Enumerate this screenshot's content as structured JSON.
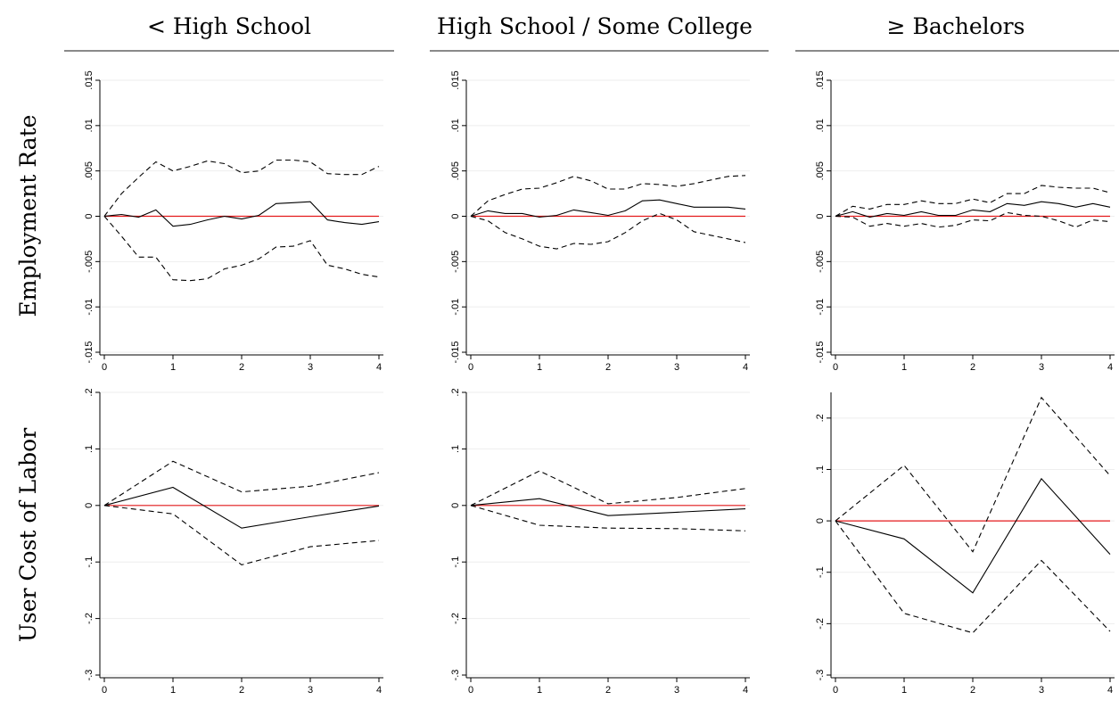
{
  "columns": [
    "< High School",
    "High School / Some College",
    "≥ Bachelors"
  ],
  "rows": [
    "Employment Rate",
    "User Cost of Labor"
  ],
  "chart_data": [
    {
      "type": "line",
      "x": [
        0,
        0.25,
        0.5,
        0.75,
        1,
        1.25,
        1.5,
        1.75,
        2,
        2.25,
        2.5,
        2.75,
        3,
        3.25,
        3.5,
        3.75,
        4
      ],
      "xlim": [
        0,
        4
      ],
      "xticks": [
        0,
        1,
        2,
        3,
        4
      ],
      "ylim": [
        -0.015,
        0.015
      ],
      "yticks": [
        {
          "value": 0.015,
          "label": ".015"
        },
        {
          "value": 0.01,
          "label": ".01"
        },
        {
          "value": 0.005,
          "label": ".005"
        },
        0,
        {
          "value": -0.005,
          "label": "-.005"
        },
        {
          "value": -0.01,
          "label": "-.01"
        },
        {
          "value": -0.015,
          "label": "-.015"
        }
      ],
      "grid": true,
      "reference_line": 0,
      "reference_color": "#e41a1c",
      "series": [
        {
          "color": "#000000",
          "style": "solid",
          "values": [
            0,
            0.0002,
            -0.0001,
            0.0007,
            -0.0011,
            -0.0009,
            -0.0004,
            0,
            -0.0003,
            0.0001,
            0.0014,
            0.0015,
            0.0016,
            -0.0004,
            -0.0007,
            -0.0009,
            -0.0006
          ]
        },
        {
          "color": "#000000",
          "style": "dashed",
          "values": [
            0,
            0.0025,
            0.0043,
            0.006,
            0.005,
            0.0055,
            0.0061,
            0.0058,
            0.0048,
            0.005,
            0.0062,
            0.0062,
            0.006,
            0.0047,
            0.0046,
            0.0046,
            0.0055
          ]
        },
        {
          "color": "#000000",
          "style": "dashed",
          "values": [
            0,
            -0.0022,
            -0.0045,
            -0.0045,
            -0.007,
            -0.0071,
            -0.0069,
            -0.0058,
            -0.0054,
            -0.0047,
            -0.0034,
            -0.0033,
            -0.0027,
            -0.0054,
            -0.0058,
            -0.0064,
            -0.0067
          ]
        }
      ]
    },
    {
      "type": "line",
      "x": [
        0,
        0.25,
        0.5,
        0.75,
        1,
        1.25,
        1.5,
        1.75,
        2,
        2.25,
        2.5,
        2.75,
        3,
        3.25,
        3.5,
        3.75,
        4
      ],
      "xlim": [
        0,
        4
      ],
      "xticks": [
        0,
        1,
        2,
        3,
        4
      ],
      "ylim": [
        -0.015,
        0.015
      ],
      "yticks": [
        {
          "value": 0.015,
          "label": ".015"
        },
        {
          "value": 0.01,
          "label": ".01"
        },
        {
          "value": 0.005,
          "label": ".005"
        },
        0,
        {
          "value": -0.005,
          "label": "-.005"
        },
        {
          "value": -0.01,
          "label": "-.01"
        },
        {
          "value": -0.015,
          "label": "-.015"
        }
      ],
      "grid": true,
      "reference_line": 0,
      "reference_color": "#e41a1c",
      "series": [
        {
          "color": "#000000",
          "style": "solid",
          "values": [
            0,
            0.0006,
            0.0003,
            0.0003,
            -0.0001,
            0.0001,
            0.0007,
            0.0004,
            0.0001,
            0.0006,
            0.0017,
            0.0018,
            0.0014,
            0.001,
            0.001,
            0.001,
            0.0008
          ]
        },
        {
          "color": "#000000",
          "style": "dashed",
          "values": [
            0,
            0.0017,
            0.0024,
            0.003,
            0.0031,
            0.0037,
            0.0044,
            0.0039,
            0.003,
            0.003,
            0.0036,
            0.0035,
            0.0033,
            0.0036,
            0.004,
            0.0044,
            0.0045
          ]
        },
        {
          "color": "#000000",
          "style": "dashed",
          "values": [
            0,
            -0.0005,
            -0.0018,
            -0.0025,
            -0.0033,
            -0.0036,
            -0.003,
            -0.0031,
            -0.0028,
            -0.0018,
            -0.0005,
            0.0003,
            -0.0004,
            -0.0017,
            -0.0021,
            -0.0025,
            -0.0029
          ]
        }
      ]
    },
    {
      "type": "line",
      "x": [
        0,
        0.25,
        0.5,
        0.75,
        1,
        1.25,
        1.5,
        1.75,
        2,
        2.25,
        2.5,
        2.75,
        3,
        3.25,
        3.5,
        3.75,
        4
      ],
      "xlim": [
        0,
        4
      ],
      "xticks": [
        0,
        1,
        2,
        3,
        4
      ],
      "ylim": [
        -0.015,
        0.015
      ],
      "yticks": [
        {
          "value": 0.015,
          "label": ".015"
        },
        {
          "value": 0.01,
          "label": ".01"
        },
        {
          "value": 0.005,
          "label": ".005"
        },
        0,
        {
          "value": -0.005,
          "label": "-.005"
        },
        {
          "value": -0.01,
          "label": "-.01"
        },
        {
          "value": -0.015,
          "label": "-.015"
        }
      ],
      "grid": true,
      "reference_line": 0,
      "reference_color": "#e41a1c",
      "series": [
        {
          "color": "#000000",
          "style": "solid",
          "values": [
            0,
            0.0005,
            -0.0001,
            0.0003,
            0.0001,
            0.0005,
            0.0001,
            0.0001,
            0.0007,
            0.0005,
            0.0014,
            0.0012,
            0.0016,
            0.0014,
            0.001,
            0.0014,
            0.001
          ]
        },
        {
          "color": "#000000",
          "style": "dashed",
          "values": [
            0,
            0.0011,
            0.0008,
            0.0013,
            0.0013,
            0.0017,
            0.0014,
            0.0014,
            0.0019,
            0.0015,
            0.0025,
            0.0025,
            0.0034,
            0.0032,
            0.0031,
            0.0031,
            0.0026
          ]
        },
        {
          "color": "#000000",
          "style": "dashed",
          "values": [
            0,
            -0.0001,
            -0.0011,
            -0.0008,
            -0.0011,
            -0.0008,
            -0.0012,
            -0.001,
            -0.0004,
            -0.0005,
            0.0004,
            0.0001,
            0,
            -0.0005,
            -0.0012,
            -0.0004,
            -0.0006
          ]
        }
      ]
    },
    {
      "type": "line",
      "x": [
        0,
        1,
        2,
        3,
        4
      ],
      "xlim": [
        0,
        4
      ],
      "xticks": [
        0,
        1,
        2,
        3,
        4
      ],
      "ylim": [
        -0.3,
        0.2
      ],
      "yticks": [
        {
          "value": 0.2,
          "label": ".2"
        },
        {
          "value": 0.1,
          "label": ".1"
        },
        0,
        {
          "value": -0.1,
          "label": "-.1"
        },
        {
          "value": -0.2,
          "label": "-.2"
        },
        {
          "value": -0.3,
          "label": "-.3"
        }
      ],
      "grid": true,
      "reference_line": 0,
      "reference_color": "#e41a1c",
      "series": [
        {
          "color": "#000000",
          "style": "solid",
          "values": [
            0,
            0.032,
            -0.04,
            -0.02,
            -0.001
          ]
        },
        {
          "color": "#000000",
          "style": "dashed",
          "values": [
            0,
            0.078,
            0.024,
            0.034,
            0.058
          ]
        },
        {
          "color": "#000000",
          "style": "dashed",
          "values": [
            0,
            -0.015,
            -0.105,
            -0.073,
            -0.062
          ]
        }
      ]
    },
    {
      "type": "line",
      "x": [
        0,
        1,
        2,
        3,
        4
      ],
      "xlim": [
        0,
        4
      ],
      "xticks": [
        0,
        1,
        2,
        3,
        4
      ],
      "ylim": [
        -0.3,
        0.2
      ],
      "yticks": [
        {
          "value": 0.2,
          "label": ".2"
        },
        {
          "value": 0.1,
          "label": ".1"
        },
        0,
        {
          "value": -0.1,
          "label": "-.1"
        },
        {
          "value": -0.2,
          "label": "-.2"
        },
        {
          "value": -0.3,
          "label": "-.3"
        }
      ],
      "grid": true,
      "reference_line": 0,
      "reference_color": "#e41a1c",
      "series": [
        {
          "color": "#000000",
          "style": "solid",
          "values": [
            0,
            0.012,
            -0.018,
            -0.012,
            -0.006
          ]
        },
        {
          "color": "#000000",
          "style": "dashed",
          "values": [
            0,
            0.061,
            0.003,
            0.014,
            0.03
          ]
        },
        {
          "color": "#000000",
          "style": "dashed",
          "values": [
            0,
            -0.035,
            -0.04,
            -0.041,
            -0.045
          ]
        }
      ]
    },
    {
      "type": "line",
      "x": [
        0,
        1,
        2,
        3,
        4
      ],
      "xlim": [
        0,
        4
      ],
      "xticks": [
        0,
        1,
        2,
        3,
        4
      ],
      "ylim": [
        -0.3,
        0.25
      ],
      "yticks": [
        {
          "value": 0.2,
          "label": ".2"
        },
        {
          "value": 0.1,
          "label": ".1"
        },
        0,
        {
          "value": -0.1,
          "label": "-.1"
        },
        {
          "value": -0.2,
          "label": "-.2"
        },
        {
          "value": -0.3,
          "label": "-.3"
        }
      ],
      "grid": true,
      "reference_line": 0,
      "reference_color": "#e41a1c",
      "series": [
        {
          "color": "#000000",
          "style": "solid",
          "values": [
            0,
            -0.035,
            -0.14,
            0.082,
            -0.065
          ]
        },
        {
          "color": "#000000",
          "style": "dashed",
          "values": [
            0,
            0.108,
            -0.06,
            0.24,
            0.088
          ]
        },
        {
          "color": "#000000",
          "style": "dashed",
          "values": [
            0,
            -0.18,
            -0.218,
            -0.077,
            -0.215
          ]
        }
      ]
    }
  ]
}
